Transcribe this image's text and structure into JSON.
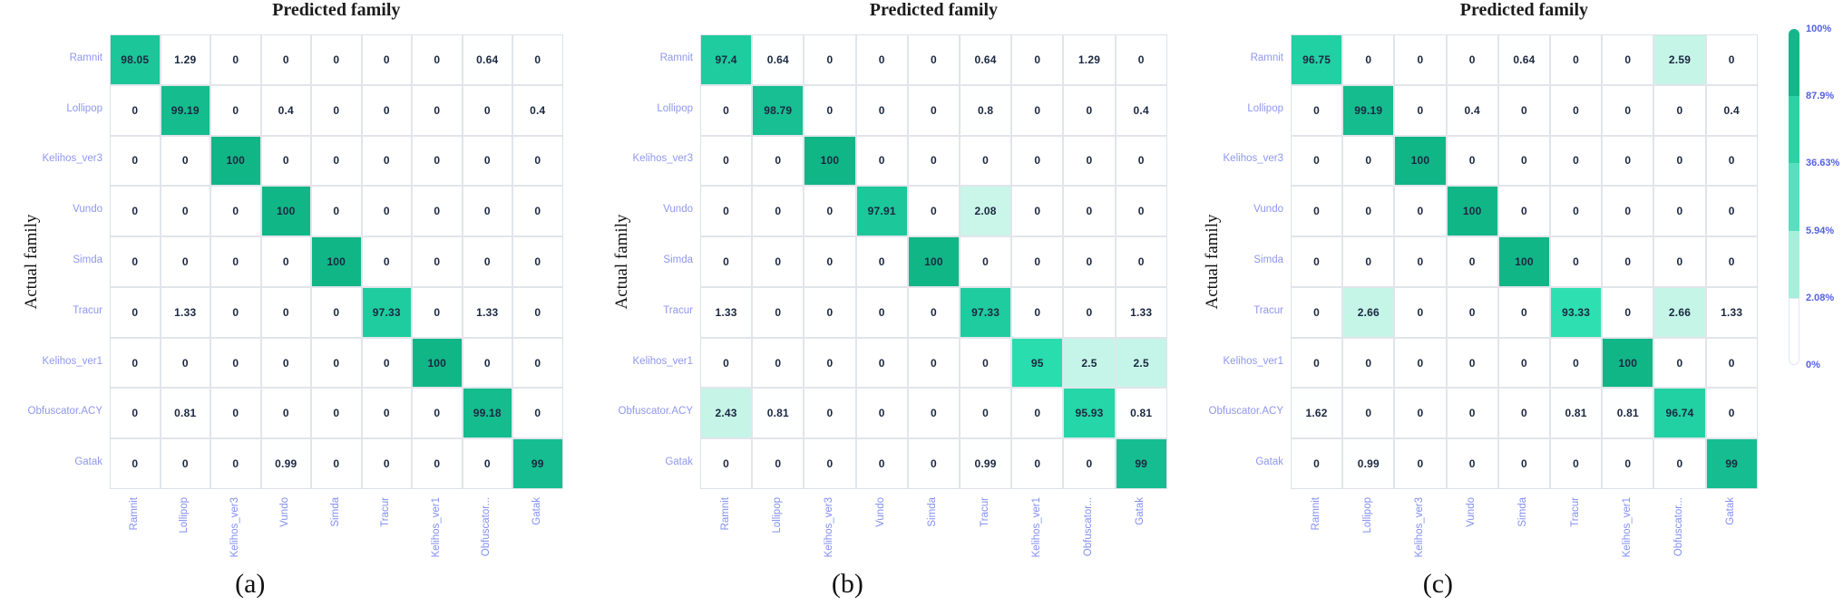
{
  "chart_data": [
    {
      "type": "heatmap",
      "caption": "(a)",
      "title": "Predicted family",
      "ylabel": "Actual family",
      "value_range": [
        0,
        100
      ],
      "x_categories": [
        "Ramnit",
        "Lollipop",
        "Kelihos_ver3",
        "Vundo",
        "Simda",
        "Tracur",
        "Kelihos_ver1",
        "Obfuscator...",
        "Gatak"
      ],
      "y_categories": [
        "Ramnit",
        "Lollipop",
        "Kelihos_ver3",
        "Vundo",
        "Simda",
        "Tracur",
        "Kelihos_ver1",
        "Obfuscator.ACY",
        "Gatak"
      ],
      "values": [
        [
          98.05,
          1.29,
          0,
          0,
          0,
          0,
          0,
          0.64,
          0
        ],
        [
          0,
          99.19,
          0,
          0.4,
          0,
          0,
          0,
          0,
          0.4
        ],
        [
          0,
          0,
          100,
          0,
          0,
          0,
          0,
          0,
          0
        ],
        [
          0,
          0,
          0,
          100,
          0,
          0,
          0,
          0,
          0
        ],
        [
          0,
          0,
          0,
          0,
          100,
          0,
          0,
          0,
          0
        ],
        [
          0,
          1.33,
          0,
          0,
          0,
          97.33,
          0,
          1.33,
          0
        ],
        [
          0,
          0,
          0,
          0,
          0,
          0,
          100,
          0,
          0
        ],
        [
          0,
          0.81,
          0,
          0,
          0,
          0,
          0,
          99.18,
          0
        ],
        [
          0,
          0,
          0,
          0.99,
          0,
          0,
          0,
          0,
          99
        ]
      ]
    },
    {
      "type": "heatmap",
      "caption": "(b)",
      "title": "Predicted family",
      "ylabel": "Actual family",
      "value_range": [
        0,
        100
      ],
      "x_categories": [
        "Ramnit",
        "Lollipop",
        "Kelihos_ver3",
        "Vundo",
        "Simda",
        "Tracur",
        "Kelihos_ver1",
        "Obfuscator...",
        "Gatak"
      ],
      "y_categories": [
        "Ramnit",
        "Lollipop",
        "Kelihos_ver3",
        "Vundo",
        "Simda",
        "Tracur",
        "Kelihos_ver1",
        "Obfuscator.ACY",
        "Gatak"
      ],
      "values": [
        [
          97.4,
          0.64,
          0,
          0,
          0,
          0.64,
          0,
          1.29,
          0
        ],
        [
          0,
          98.79,
          0,
          0,
          0,
          0.8,
          0,
          0,
          0.4
        ],
        [
          0,
          0,
          100,
          0,
          0,
          0,
          0,
          0,
          0
        ],
        [
          0,
          0,
          0,
          97.91,
          0,
          2.08,
          0,
          0,
          0
        ],
        [
          0,
          0,
          0,
          0,
          100,
          0,
          0,
          0,
          0
        ],
        [
          1.33,
          0,
          0,
          0,
          0,
          97.33,
          0,
          0,
          1.33
        ],
        [
          0,
          0,
          0,
          0,
          0,
          0,
          95,
          2.5,
          2.5
        ],
        [
          2.43,
          0.81,
          0,
          0,
          0,
          0,
          0,
          95.93,
          0.81
        ],
        [
          0,
          0,
          0,
          0,
          0,
          0.99,
          0,
          0,
          99
        ]
      ]
    },
    {
      "type": "heatmap",
      "caption": "(c)",
      "title": "Predicted family",
      "ylabel": "Actual family",
      "value_range": [
        0,
        100
      ],
      "x_categories": [
        "Ramnit",
        "Lollipop",
        "Kelihos_ver3",
        "Vundo",
        "Simda",
        "Tracur",
        "Kelihos_ver1",
        "Obfuscator...",
        "Gatak"
      ],
      "y_categories": [
        "Ramnit",
        "Lollipop",
        "Kelihos_ver3",
        "Vundo",
        "Simda",
        "Tracur",
        "Kelihos_ver1",
        "Obfuscator.ACY",
        "Gatak"
      ],
      "values": [
        [
          96.75,
          0,
          0,
          0,
          0.64,
          0,
          0,
          2.59,
          0
        ],
        [
          0,
          99.19,
          0,
          0.4,
          0,
          0,
          0,
          0,
          0.4
        ],
        [
          0,
          0,
          100,
          0,
          0,
          0,
          0,
          0,
          0
        ],
        [
          0,
          0,
          0,
          100,
          0,
          0,
          0,
          0,
          0
        ],
        [
          0,
          0,
          0,
          0,
          100,
          0,
          0,
          0,
          0
        ],
        [
          0,
          2.66,
          0,
          0,
          0,
          93.33,
          0,
          2.66,
          1.33
        ],
        [
          0,
          0,
          0,
          0,
          0,
          0,
          100,
          0,
          0
        ],
        [
          1.62,
          0,
          0,
          0,
          0,
          0.81,
          0.81,
          96.74,
          0
        ],
        [
          0,
          0.99,
          0,
          0,
          0,
          0,
          0,
          0,
          99
        ]
      ]
    }
  ],
  "colorbar": {
    "tick_labels": [
      "100%",
      "87.9%",
      "36.63%",
      "5.94%",
      "2.08%",
      "0%"
    ],
    "segment_colors": [
      "#14b78a",
      "#2bd2a4",
      "#58dfc0",
      "#a7eedb",
      "#ffffff"
    ]
  },
  "style": {
    "color_scale_stops": [
      [
        0,
        "#ffffff"
      ],
      [
        2.0,
        "#fdfffe"
      ],
      [
        2.08,
        "#c9f6e9"
      ],
      [
        5.94,
        "#a8f0dd"
      ],
      [
        36.63,
        "#66e3c4"
      ],
      [
        87.9,
        "#3ee4ba"
      ],
      [
        95,
        "#29ddae"
      ],
      [
        97.5,
        "#1ecb9e"
      ],
      [
        99,
        "#16bd90"
      ],
      [
        100,
        "#11b687"
      ]
    ],
    "gridline_color": "#e1e5eb",
    "value_text_color": "#1b2740",
    "tick_label_color": "#8f97ee",
    "colorbar_label_color": "#5460e4"
  }
}
